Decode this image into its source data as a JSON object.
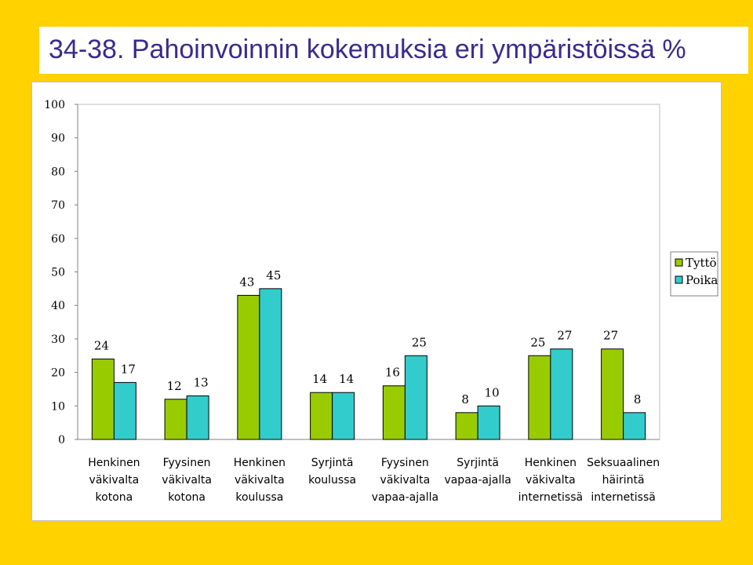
{
  "title": "34-38. Pahoinvoinnin kokemuksia eri ympäristöissä %",
  "colors": {
    "background": "#FFD200",
    "series_girl": "#99CC00",
    "series_boy": "#33CCCC"
  },
  "chart_data": {
    "type": "bar",
    "title": "",
    "xlabel": "",
    "ylabel": "",
    "ylim": [
      0,
      100
    ],
    "yticks": [
      0,
      10,
      20,
      30,
      40,
      50,
      60,
      70,
      80,
      90,
      100
    ],
    "grid": false,
    "legend_position": "right",
    "categories": [
      [
        "Henkinen",
        "väkivalta",
        "kotona"
      ],
      [
        "Fyysinen",
        "väkivalta",
        "kotona"
      ],
      [
        "Henkinen",
        "väkivalta",
        "koulussa"
      ],
      [
        "Syrjintä",
        "koulussa"
      ],
      [
        "Fyysinen",
        "väkivalta",
        "vapaa-ajalla"
      ],
      [
        "Syrjintä",
        "vapaa-ajalla"
      ],
      [
        "Henkinen",
        "väkivalta",
        "internetissä"
      ],
      [
        "Seksuaalinen",
        "häirintä",
        "internetissä"
      ]
    ],
    "series": [
      {
        "name": "Tyttö",
        "color": "#99CC00",
        "values": [
          24,
          12,
          43,
          14,
          16,
          8,
          25,
          27
        ]
      },
      {
        "name": "Poika",
        "color": "#33CCCC",
        "values": [
          17,
          13,
          45,
          14,
          25,
          10,
          27,
          8
        ]
      }
    ]
  }
}
